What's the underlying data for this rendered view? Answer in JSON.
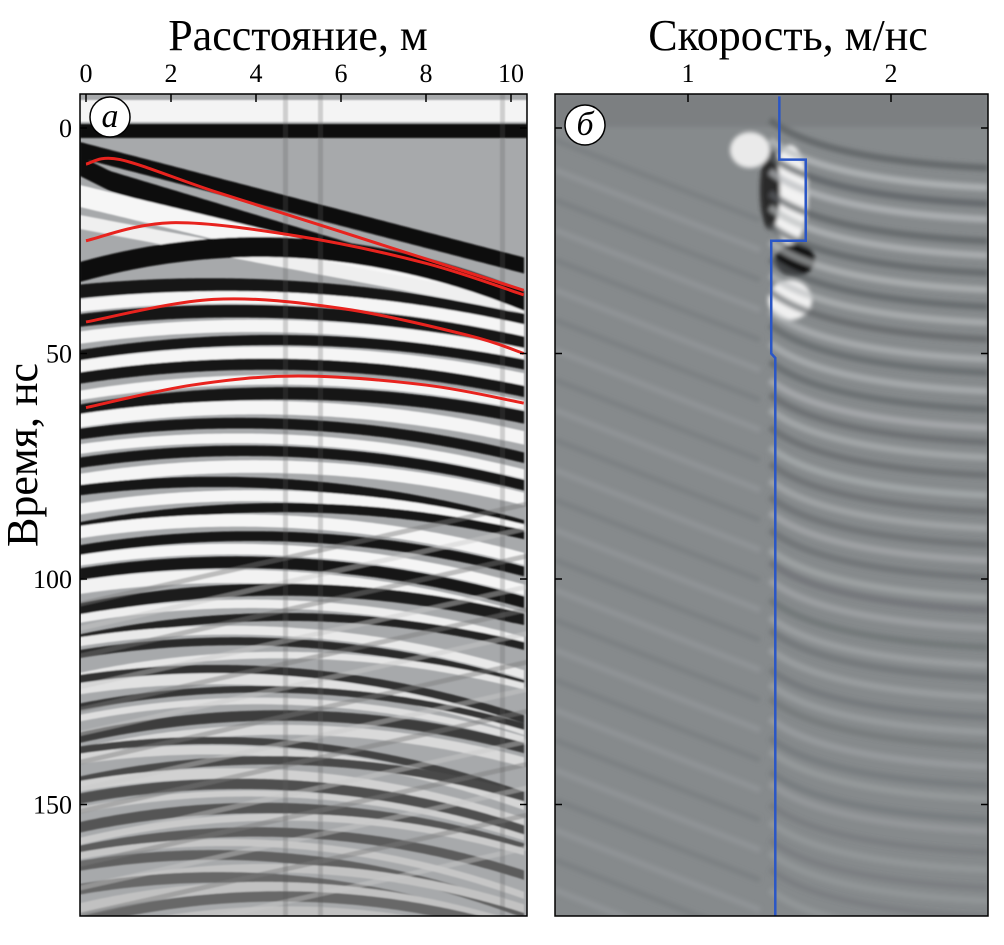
{
  "chart_data": [
    {
      "type": "line",
      "panel_label": "а",
      "xlabel": "Расстояние, м",
      "ylabel": "Время, нс",
      "xlim": [
        0,
        10.3
      ],
      "ylim": [
        0,
        175
      ],
      "y_inverted": true,
      "x_ticks": [
        0,
        2,
        4,
        6,
        8,
        10
      ],
      "y_ticks": [
        0,
        50,
        100,
        150
      ],
      "background": "grayscale radargram (GPR section)",
      "series": [
        {
          "color": "#e8231e",
          "x": [
            0,
            0.8,
            3,
            6,
            10.3
          ],
          "y": [
            8,
            7,
            14,
            23,
            36
          ]
        },
        {
          "color": "#e8231e",
          "x": [
            0,
            2,
            5,
            8,
            10.3
          ],
          "y": [
            25,
            21,
            24,
            30,
            37
          ]
        },
        {
          "color": "#e8231e",
          "x": [
            0,
            3,
            6,
            9,
            10.3
          ],
          "y": [
            43,
            38,
            40,
            46,
            50
          ]
        },
        {
          "color": "#e8231e",
          "x": [
            0,
            2.5,
            5,
            8,
            10.3
          ],
          "y": [
            62,
            57,
            55,
            57,
            61
          ]
        }
      ]
    },
    {
      "type": "line",
      "panel_label": "б",
      "xlabel": "Скорость, м/нс",
      "xlim": [
        0.35,
        2.45
      ],
      "ylim": [
        0,
        175
      ],
      "y_inverted": true,
      "x_ticks": [
        1,
        2
      ],
      "background": "grayscale velocity spectrum",
      "series": [
        {
          "color": "#2a56c6",
          "x": [
            1.45,
            1.45,
            1.58,
            1.58,
            1.41,
            1.41,
            1.43,
            1.43
          ],
          "y": [
            -7,
            7,
            7,
            25,
            25,
            50,
            51,
            176
          ]
        }
      ]
    }
  ]
}
